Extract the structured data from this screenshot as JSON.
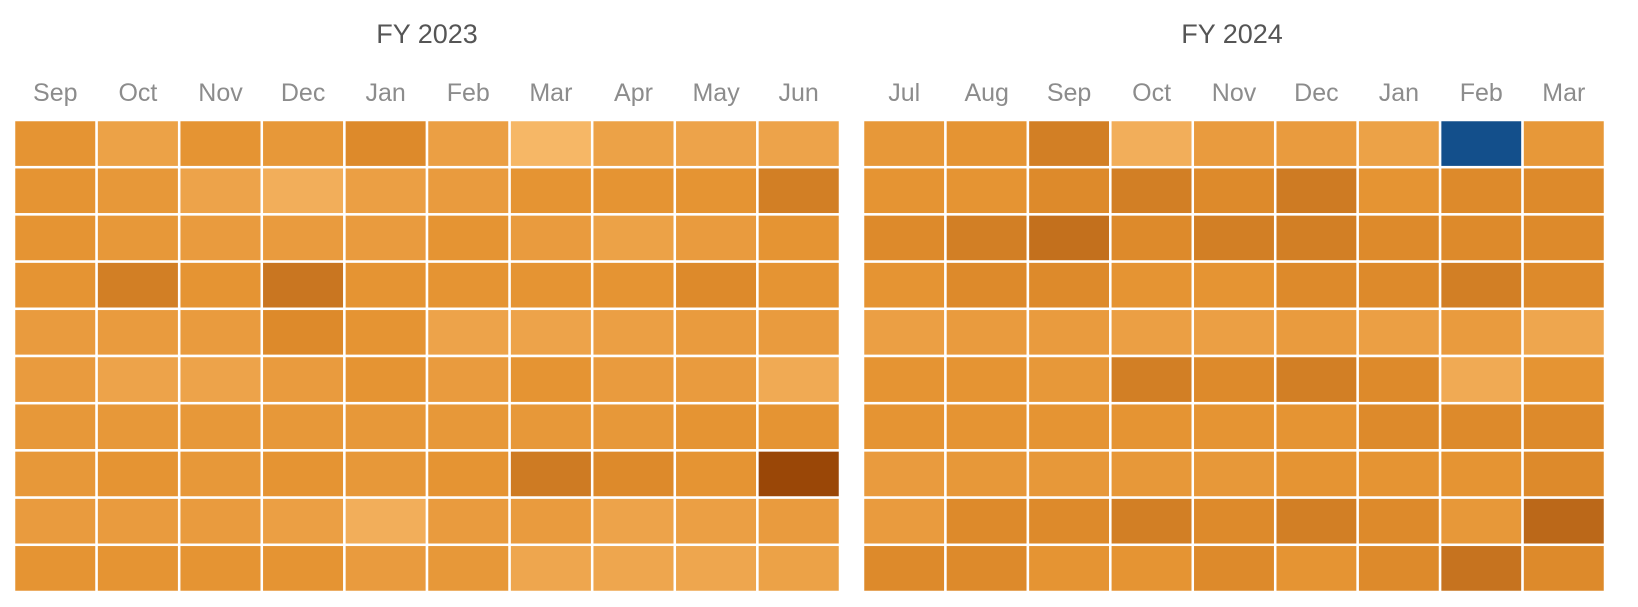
{
  "chart_data": [
    {
      "type": "heatmap",
      "title": "FY 2023",
      "xlabel": "",
      "ylabel": "",
      "columns": [
        "Sep",
        "Oct",
        "Nov",
        "Dec",
        "Jan",
        "Feb",
        "Mar",
        "Apr",
        "May",
        "Jun"
      ],
      "rows": 10,
      "color_scale": "relative intensity 0 (light) .. 1 (dark)",
      "grid": true,
      "legend": "none",
      "cells": [
        [
          0.47,
          0.3,
          0.47,
          0.42,
          0.55,
          0.33,
          0.05,
          0.3,
          0.28,
          0.28
        ],
        [
          0.47,
          0.42,
          0.28,
          0.15,
          0.33,
          0.38,
          0.47,
          0.47,
          0.47,
          0.62
        ],
        [
          0.47,
          0.42,
          0.38,
          0.38,
          0.38,
          0.47,
          0.38,
          0.3,
          0.38,
          0.47
        ],
        [
          0.47,
          0.62,
          0.47,
          0.68,
          0.47,
          0.47,
          0.47,
          0.47,
          0.55,
          0.47
        ],
        [
          0.38,
          0.38,
          0.38,
          0.55,
          0.47,
          0.28,
          0.28,
          0.33,
          0.38,
          0.38
        ],
        [
          0.38,
          0.28,
          0.28,
          0.38,
          0.47,
          0.38,
          0.47,
          0.38,
          0.38,
          0.2
        ],
        [
          0.42,
          0.42,
          0.42,
          0.42,
          0.42,
          0.42,
          0.42,
          0.42,
          0.47,
          0.47
        ],
        [
          0.42,
          0.47,
          0.42,
          0.47,
          0.42,
          0.47,
          0.65,
          0.55,
          0.47,
          1.0
        ],
        [
          0.38,
          0.38,
          0.38,
          0.33,
          0.15,
          0.38,
          0.38,
          0.28,
          0.33,
          0.38
        ],
        [
          0.47,
          0.47,
          0.47,
          0.47,
          0.38,
          0.42,
          0.25,
          0.25,
          0.25,
          0.3
        ]
      ]
    },
    {
      "type": "heatmap",
      "title": "FY 2024",
      "xlabel": "",
      "ylabel": "",
      "columns": [
        "Jul",
        "Aug",
        "Sep",
        "Oct",
        "Nov",
        "Dec",
        "Jan",
        "Feb",
        "Mar"
      ],
      "rows": 10,
      "color_scale": "relative intensity 0 (light) .. 1 (dark)",
      "grid": true,
      "legend": "none",
      "highlight": {
        "row": 0,
        "col": 7,
        "color": "#134f8b"
      },
      "cells": [
        [
          0.42,
          0.47,
          0.62,
          0.15,
          0.38,
          0.38,
          0.3,
          null,
          0.42
        ],
        [
          0.47,
          0.47,
          0.55,
          0.62,
          0.55,
          0.65,
          0.47,
          0.55,
          0.55
        ],
        [
          0.55,
          0.62,
          0.72,
          0.55,
          0.62,
          0.62,
          0.55,
          0.55,
          0.55
        ],
        [
          0.47,
          0.55,
          0.55,
          0.47,
          0.47,
          0.55,
          0.55,
          0.62,
          0.55
        ],
        [
          0.33,
          0.38,
          0.38,
          0.33,
          0.33,
          0.38,
          0.33,
          0.38,
          0.25
        ],
        [
          0.47,
          0.47,
          0.42,
          0.62,
          0.55,
          0.62,
          0.55,
          0.2,
          0.47
        ],
        [
          0.47,
          0.47,
          0.47,
          0.47,
          0.47,
          0.47,
          0.55,
          0.55,
          0.55
        ],
        [
          0.38,
          0.42,
          0.42,
          0.42,
          0.42,
          0.47,
          0.47,
          0.47,
          0.55
        ],
        [
          0.38,
          0.55,
          0.55,
          0.62,
          0.55,
          0.62,
          0.55,
          0.42,
          0.78
        ],
        [
          0.55,
          0.55,
          0.47,
          0.47,
          0.55,
          0.47,
          0.55,
          0.7,
          0.55
        ]
      ]
    }
  ],
  "colors": {
    "scale_light": "#f8bb6c",
    "scale_mid": "#e4912f",
    "scale_dark": "#9a4707",
    "gridline": "#ffffff",
    "title_text": "#555555",
    "month_text": "#8c8c8c"
  }
}
